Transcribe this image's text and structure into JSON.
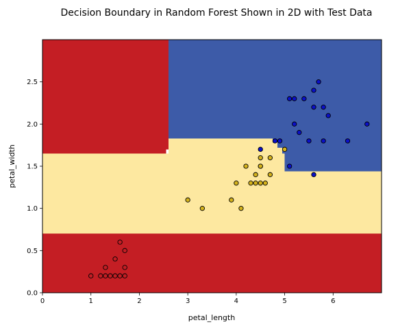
{
  "chart_data": {
    "type": "scatter",
    "title": "Decision Boundary in Random Forest Shown in 2D with Test Data",
    "xlabel": "petal_length",
    "ylabel": "petal_width",
    "xlim": [
      0,
      7
    ],
    "ylim": [
      0,
      3.0
    ],
    "xticks": [
      "0",
      "1",
      "2",
      "3",
      "4",
      "5",
      "6"
    ],
    "yticks": [
      "0.0",
      "0.5",
      "1.0",
      "1.5",
      "2.0",
      "2.5"
    ],
    "grid": false,
    "colors": {
      "red": "#c41e24",
      "yellow": "#fde8a0",
      "blue": "#3d5ba8",
      "point_red": "#c41e24",
      "point_yellow": "#d4b21c",
      "point_blue": "#0a10c8"
    },
    "regions": [
      {
        "class": "red",
        "x": [
          0,
          7
        ],
        "y": [
          0,
          0.7
        ]
      },
      {
        "class": "yellow",
        "x": [
          0,
          7
        ],
        "y": [
          0.7,
          1.44
        ]
      },
      {
        "class": "yellow",
        "x": [
          0,
          5.0
        ],
        "y": [
          1.44,
          1.65
        ]
      },
      {
        "class": "yellow",
        "x": [
          2.6,
          4.75
        ],
        "y": [
          1.65,
          1.83
        ]
      },
      {
        "class": "yellow",
        "x": [
          4.75,
          4.85
        ],
        "y": [
          1.65,
          1.78
        ]
      },
      {
        "class": "yellow",
        "x": [
          4.85,
          4.95
        ],
        "y": [
          1.65,
          1.72
        ]
      },
      {
        "class": "red",
        "x": [
          0,
          2.55
        ],
        "y": [
          1.65,
          3.0
        ]
      },
      {
        "class": "red",
        "x": [
          2.55,
          2.6
        ],
        "y": [
          1.7,
          3.0
        ]
      },
      {
        "class": "blue",
        "x": [
          2.6,
          7
        ],
        "y": [
          1.83,
          3.0
        ]
      },
      {
        "class": "blue",
        "x": [
          4.75,
          7
        ],
        "y": [
          1.78,
          1.83
        ]
      },
      {
        "class": "blue",
        "x": [
          4.85,
          7
        ],
        "y": [
          1.72,
          1.78
        ]
      },
      {
        "class": "blue",
        "x": [
          4.95,
          7
        ],
        "y": [
          1.65,
          1.72
        ]
      },
      {
        "class": "blue",
        "x": [
          5.0,
          7
        ],
        "y": [
          1.44,
          1.65
        ]
      }
    ],
    "series": [
      {
        "class": "red",
        "points": [
          [
            1.0,
            0.2
          ],
          [
            1.2,
            0.2
          ],
          [
            1.3,
            0.2
          ],
          [
            1.4,
            0.2
          ],
          [
            1.5,
            0.2
          ],
          [
            1.6,
            0.2
          ],
          [
            1.7,
            0.2
          ],
          [
            1.3,
            0.3
          ],
          [
            1.7,
            0.3
          ],
          [
            1.5,
            0.4
          ],
          [
            1.7,
            0.5
          ],
          [
            1.6,
            0.6
          ]
        ]
      },
      {
        "class": "yellow",
        "points": [
          [
            3.0,
            1.1
          ],
          [
            3.3,
            1.0
          ],
          [
            3.9,
            1.1
          ],
          [
            4.0,
            1.3
          ],
          [
            4.1,
            1.0
          ],
          [
            4.2,
            1.5
          ],
          [
            4.3,
            1.3
          ],
          [
            4.4,
            1.3
          ],
          [
            4.4,
            1.4
          ],
          [
            4.5,
            1.3
          ],
          [
            4.5,
            1.5
          ],
          [
            4.5,
            1.5
          ],
          [
            4.5,
            1.6
          ],
          [
            4.6,
            1.3
          ],
          [
            4.7,
            1.4
          ],
          [
            4.7,
            1.6
          ],
          [
            5.0,
            1.7
          ]
        ]
      },
      {
        "class": "blue",
        "points": [
          [
            4.5,
            1.7
          ],
          [
            4.8,
            1.8
          ],
          [
            4.9,
            1.8
          ],
          [
            5.1,
            1.5
          ],
          [
            5.1,
            2.3
          ],
          [
            5.2,
            2.0
          ],
          [
            5.2,
            2.3
          ],
          [
            5.3,
            1.9
          ],
          [
            5.4,
            2.3
          ],
          [
            5.5,
            1.8
          ],
          [
            5.6,
            1.4
          ],
          [
            5.6,
            2.2
          ],
          [
            5.6,
            2.4
          ],
          [
            5.7,
            2.5
          ],
          [
            5.8,
            1.8
          ],
          [
            5.8,
            2.2
          ],
          [
            5.9,
            2.1
          ],
          [
            6.3,
            1.8
          ],
          [
            6.7,
            2.0
          ]
        ]
      }
    ]
  }
}
